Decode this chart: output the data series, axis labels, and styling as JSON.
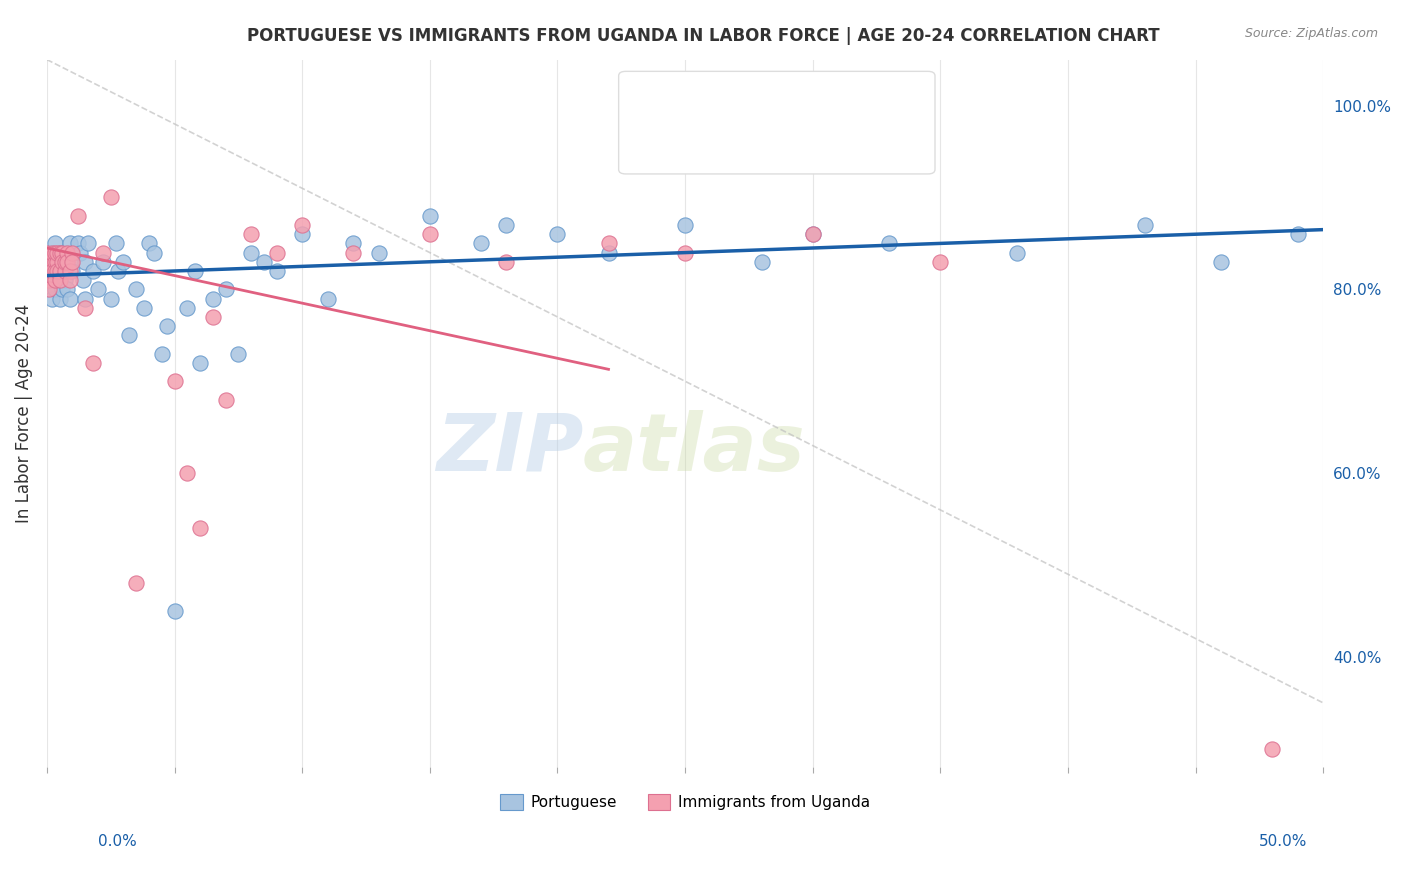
{
  "title": "PORTUGUESE VS IMMIGRANTS FROM UGANDA IN LABOR FORCE | AGE 20-24 CORRELATION CHART",
  "source": "Source: ZipAtlas.com",
  "ylabel": "In Labor Force | Age 20-24",
  "right_yticks": [
    "100.0%",
    "80.0%",
    "60.0%",
    "40.0%"
  ],
  "right_ytick_vals": [
    1.0,
    0.8,
    0.6,
    0.4
  ],
  "xlim": [
    0.0,
    0.5
  ],
  "ylim": [
    0.28,
    1.05
  ],
  "color_portuguese": "#a8c4e0",
  "color_uganda": "#f4a0b0",
  "color_blue_line": "#1a5fa8",
  "color_pink_line": "#e06080",
  "color_gray_dashed": "#c0c0c0",
  "blue_scatter_x": [
    0.0,
    0.0,
    0.001,
    0.001,
    0.002,
    0.002,
    0.003,
    0.003,
    0.003,
    0.004,
    0.004,
    0.005,
    0.005,
    0.005,
    0.006,
    0.006,
    0.007,
    0.007,
    0.008,
    0.008,
    0.009,
    0.009,
    0.01,
    0.01,
    0.012,
    0.013,
    0.014,
    0.015,
    0.015,
    0.016,
    0.018,
    0.02,
    0.022,
    0.025,
    0.027,
    0.028,
    0.03,
    0.032,
    0.035,
    0.038,
    0.04,
    0.042,
    0.045,
    0.047,
    0.05,
    0.055,
    0.058,
    0.06,
    0.065,
    0.07,
    0.075,
    0.08,
    0.085,
    0.09,
    0.1,
    0.11,
    0.12,
    0.13,
    0.15,
    0.17,
    0.18,
    0.2,
    0.22,
    0.25,
    0.28,
    0.3,
    0.33,
    0.38,
    0.43,
    0.46,
    0.49
  ],
  "blue_scatter_y": [
    0.82,
    0.8,
    0.83,
    0.81,
    0.84,
    0.79,
    0.85,
    0.82,
    0.8,
    0.83,
    0.81,
    0.82,
    0.84,
    0.79,
    0.83,
    0.8,
    0.81,
    0.82,
    0.84,
    0.8,
    0.85,
    0.79,
    0.83,
    0.82,
    0.85,
    0.84,
    0.81,
    0.83,
    0.79,
    0.85,
    0.82,
    0.8,
    0.83,
    0.79,
    0.85,
    0.82,
    0.83,
    0.75,
    0.8,
    0.78,
    0.85,
    0.84,
    0.73,
    0.76,
    0.45,
    0.78,
    0.82,
    0.72,
    0.79,
    0.8,
    0.73,
    0.84,
    0.83,
    0.82,
    0.86,
    0.79,
    0.85,
    0.84,
    0.88,
    0.85,
    0.87,
    0.86,
    0.84,
    0.87,
    0.83,
    0.86,
    0.85,
    0.84,
    0.87,
    0.83,
    0.86
  ],
  "pink_scatter_x": [
    0.0,
    0.0,
    0.0,
    0.001,
    0.001,
    0.001,
    0.001,
    0.002,
    0.002,
    0.002,
    0.003,
    0.003,
    0.003,
    0.003,
    0.004,
    0.004,
    0.004,
    0.005,
    0.005,
    0.005,
    0.006,
    0.006,
    0.007,
    0.007,
    0.008,
    0.008,
    0.009,
    0.009,
    0.01,
    0.01,
    0.012,
    0.015,
    0.018,
    0.022,
    0.025,
    0.035,
    0.05,
    0.055,
    0.06,
    0.065,
    0.07,
    0.08,
    0.09,
    0.1,
    0.12,
    0.15,
    0.18,
    0.22,
    0.25,
    0.3,
    0.35,
    0.48
  ],
  "pink_scatter_y": [
    0.82,
    0.83,
    0.84,
    0.82,
    0.83,
    0.81,
    0.8,
    0.83,
    0.82,
    0.84,
    0.83,
    0.82,
    0.84,
    0.81,
    0.83,
    0.82,
    0.84,
    0.84,
    0.82,
    0.81,
    0.84,
    0.83,
    0.82,
    0.83,
    0.84,
    0.83,
    0.82,
    0.81,
    0.84,
    0.83,
    0.88,
    0.78,
    0.72,
    0.84,
    0.9,
    0.48,
    0.7,
    0.6,
    0.54,
    0.77,
    0.68,
    0.86,
    0.84,
    0.87,
    0.84,
    0.86,
    0.83,
    0.85,
    0.84,
    0.86,
    0.83,
    0.3
  ],
  "watermark_zip": "ZIP",
  "watermark_atlas": "atlas",
  "background_color": "#ffffff",
  "grid_color": "#e0e0e0",
  "blue_slope": 0.1,
  "blue_intercept": 0.815,
  "pink_slope": -0.6,
  "pink_intercept": 0.845,
  "gray_slope": -1.4,
  "gray_intercept": 1.05
}
